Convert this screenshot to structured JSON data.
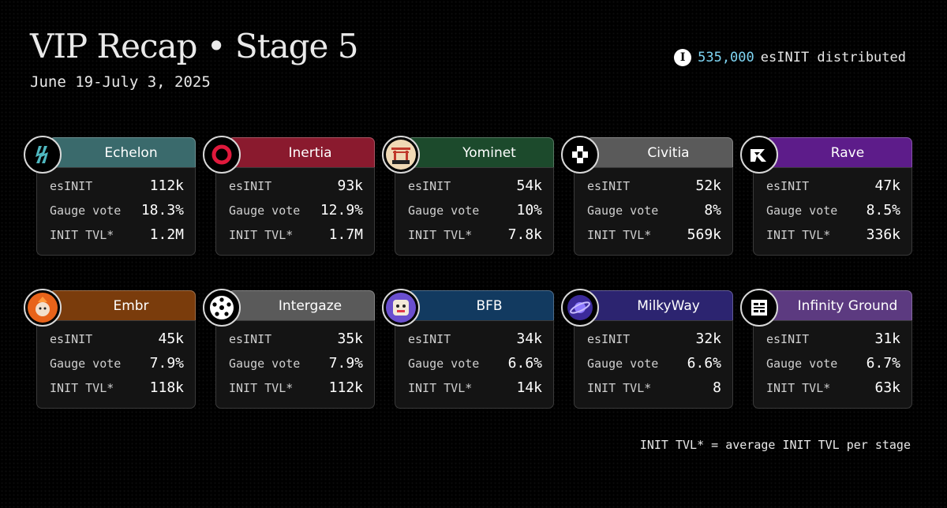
{
  "header": {
    "title": "VIP Recap • Stage 5",
    "dates": "June 19-July 3, 2025",
    "distributed_amount": "535,000",
    "distributed_suffix": "esINIT distributed"
  },
  "labels": {
    "esinit": "esINIT",
    "gauge": "Gauge vote",
    "tvl": "INIT TVL*"
  },
  "cards": [
    {
      "name": "Echelon",
      "color": "#3a6a6c",
      "icon": "echelon-logo-icon",
      "esinit": "112k",
      "gauge": "18.3%",
      "tvl": "1.2M"
    },
    {
      "name": "Inertia",
      "color": "#8a1a2e",
      "icon": "inertia-logo-icon",
      "esinit": "93k",
      "gauge": "12.9%",
      "tvl": "1.7M"
    },
    {
      "name": "Yominet",
      "color": "#1c4a2c",
      "icon": "yominet-logo-icon",
      "esinit": "54k",
      "gauge": "10%",
      "tvl": "7.8k"
    },
    {
      "name": "Civitia",
      "color": "#5a5a5a",
      "icon": "civitia-logo-icon",
      "esinit": "52k",
      "gauge": "8%",
      "tvl": "569k"
    },
    {
      "name": "Rave",
      "color": "#5d1c8a",
      "icon": "rave-logo-icon",
      "esinit": "47k",
      "gauge": "8.5%",
      "tvl": "336k"
    },
    {
      "name": "Embr",
      "color": "#7a3c0c",
      "icon": "embr-logo-icon",
      "esinit": "45k",
      "gauge": "7.9%",
      "tvl": "118k"
    },
    {
      "name": "Intergaze",
      "color": "#5a5a5a",
      "icon": "intergaze-logo-icon",
      "esinit": "35k",
      "gauge": "7.9%",
      "tvl": "112k"
    },
    {
      "name": "BFB",
      "color": "#123a60",
      "icon": "bfb-logo-icon",
      "esinit": "34k",
      "gauge": "6.6%",
      "tvl": "14k"
    },
    {
      "name": "MilkyWay",
      "color": "#2c2470",
      "icon": "milkyway-logo-icon",
      "esinit": "32k",
      "gauge": "6.6%",
      "tvl": "8"
    },
    {
      "name": "Infinity Ground",
      "color": "#5c3a80",
      "icon": "infinity-ground-logo-icon",
      "esinit": "31k",
      "gauge": "6.7%",
      "tvl": "63k"
    }
  ],
  "footnote": "INIT TVL* = average INIT TVL per stage"
}
